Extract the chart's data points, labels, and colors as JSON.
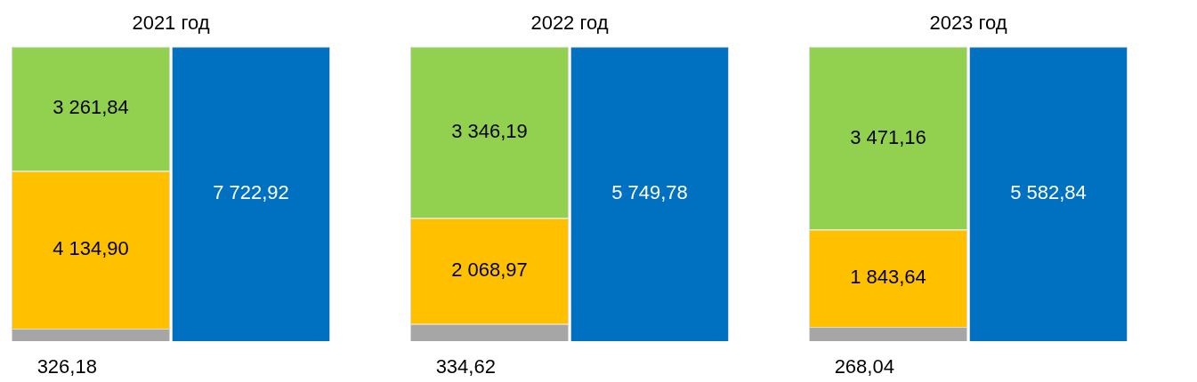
{
  "chart_data": [
    {
      "type": "bar",
      "title": "2021 год",
      "categories": [
        null,
        null
      ],
      "stacked": true,
      "tick_labels": false,
      "series": [
        {
          "color": "#a6a6a6",
          "values": [
            326.18,
            null
          ],
          "value_labels": [
            "326,18",
            null
          ]
        },
        {
          "color": "#ffc000",
          "values": [
            4134.9,
            null
          ],
          "value_labels": [
            "4 134,90",
            null
          ]
        },
        {
          "color": "#92d050",
          "values": [
            3261.84,
            null
          ],
          "value_labels": [
            "3 261,84",
            null
          ]
        },
        {
          "color": "#0070c0",
          "values": [
            null,
            7722.92
          ],
          "value_labels": [
            null,
            "7 722,92"
          ]
        }
      ]
    },
    {
      "type": "bar",
      "title": "2022 год",
      "categories": [
        null,
        null
      ],
      "stacked": true,
      "tick_labels": false,
      "series": [
        {
          "color": "#a6a6a6",
          "values": [
            334.62,
            null
          ],
          "value_labels": [
            "334,62",
            null
          ]
        },
        {
          "color": "#ffc000",
          "values": [
            2068.97,
            null
          ],
          "value_labels": [
            "2 068,97",
            null
          ]
        },
        {
          "color": "#92d050",
          "values": [
            3346.19,
            null
          ],
          "value_labels": [
            "3 346,19",
            null
          ]
        },
        {
          "color": "#0070c0",
          "values": [
            null,
            5749.78
          ],
          "value_labels": [
            null,
            "5 749,78"
          ]
        }
      ]
    },
    {
      "type": "bar",
      "title": "2023 год",
      "categories": [
        null,
        null
      ],
      "stacked": true,
      "tick_labels": false,
      "series": [
        {
          "color": "#a6a6a6",
          "values": [
            268.04,
            null
          ],
          "value_labels": [
            "268,04",
            null
          ]
        },
        {
          "color": "#ffc000",
          "values": [
            1843.64,
            null
          ],
          "value_labels": [
            "1 843,64",
            null
          ]
        },
        {
          "color": "#92d050",
          "values": [
            3471.16,
            null
          ],
          "value_labels": [
            "3 471,16",
            null
          ]
        },
        {
          "color": "#0070c0",
          "values": [
            null,
            5582.84
          ],
          "value_labels": [
            null,
            "5 582,84"
          ]
        }
      ]
    }
  ]
}
